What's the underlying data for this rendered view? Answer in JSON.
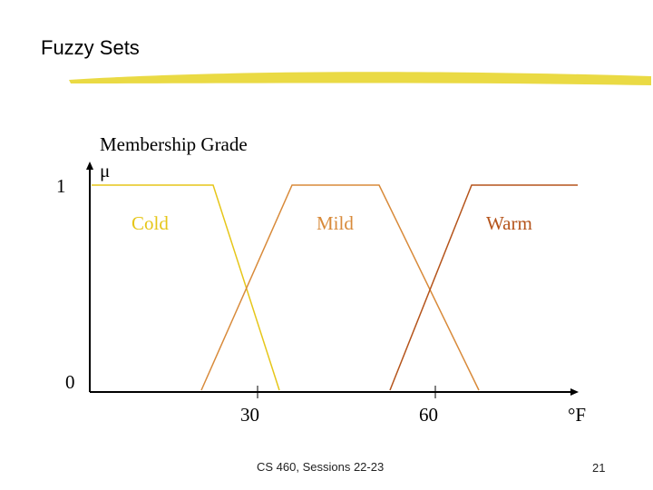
{
  "slide": {
    "title": "Fuzzy Sets",
    "footer": "CS 460,  Sessions 22-23",
    "page_number": "21"
  },
  "diagram": {
    "y_axis_label": "Membership Grade",
    "y_axis_symbol": "μ",
    "y_tick_top": "1",
    "y_tick_bottom": "0",
    "x_ticks": [
      "30",
      "60"
    ],
    "x_unit": "°F",
    "sets": [
      {
        "name": "Cold",
        "color": "#e6c619"
      },
      {
        "name": "Mild",
        "color": "#d88a3a"
      },
      {
        "name": "Warm",
        "color": "#b5541b"
      }
    ]
  },
  "colors": {
    "title_underline": "#e8d630",
    "axis": "#000000"
  }
}
